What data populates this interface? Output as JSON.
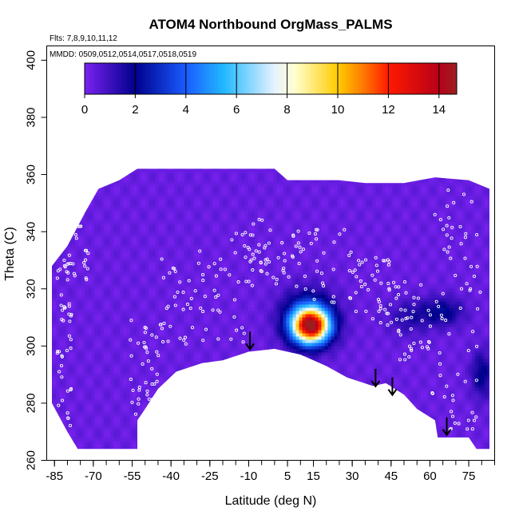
{
  "chart_data": {
    "type": "heatmap",
    "title": "ATOM4 Northbound OrgMass_PALMS",
    "flights_label": "Flts: 7,8,9,10,11,12",
    "dates_label": "MMDD: 0509,0512,0514,0517,0518,0519",
    "xlabel": "Latitude (deg N)",
    "ylabel": "Theta (C)",
    "xlim": [
      -88,
      85
    ],
    "ylim": [
      260,
      405
    ],
    "x_ticks": [
      "-85",
      "-70",
      "-55",
      "-40",
      "-25",
      "-10",
      "5",
      "15",
      "30",
      "45",
      "60",
      "75"
    ],
    "x_tick_values": [
      -85,
      -70,
      -55,
      -40,
      -25,
      -10,
      5,
      15,
      30,
      45,
      60,
      75
    ],
    "y_ticks": [
      "260",
      "280",
      "300",
      "320",
      "340",
      "360",
      "380",
      "400"
    ],
    "y_tick_values": [
      260,
      280,
      300,
      320,
      340,
      360,
      380,
      400
    ],
    "colorbar": {
      "range": [
        0,
        14.7
      ],
      "tick_labels": [
        "0",
        "2",
        "4",
        "6",
        "8",
        "10",
        "12",
        "14"
      ],
      "tick_values": [
        0,
        2,
        4,
        6,
        8,
        10,
        12,
        14
      ],
      "colors": [
        "#7a22f0",
        "#00008c",
        "#1a5cff",
        "#22b8ff",
        "#e6f2ff",
        "#ffffd0",
        "#ffcc00",
        "#ff7a00",
        "#ff1a00",
        "#b80018",
        "#9a2020"
      ],
      "color_stops": [
        0,
        2,
        4,
        5.5,
        7.5,
        8.3,
        10,
        11,
        12,
        14,
        14.7
      ]
    },
    "background_value": 0.3,
    "field_top": [
      [
        -86,
        328
      ],
      [
        -80,
        335
      ],
      [
        -73,
        347
      ],
      [
        -68,
        355
      ],
      [
        -60,
        358
      ],
      [
        -53,
        362
      ],
      [
        -40,
        362
      ],
      [
        -10,
        362
      ],
      [
        0,
        362
      ],
      [
        5,
        358
      ],
      [
        15,
        358
      ],
      [
        25,
        358
      ],
      [
        35,
        357
      ],
      [
        50,
        357
      ],
      [
        62,
        359
      ],
      [
        75,
        358
      ],
      [
        83,
        355
      ]
    ],
    "field_bottom": [
      [
        83,
        264
      ],
      [
        78,
        264
      ],
      [
        75,
        268
      ],
      [
        72,
        268
      ],
      [
        67,
        268
      ],
      [
        63,
        268
      ],
      [
        62,
        274
      ],
      [
        55,
        278
      ],
      [
        50,
        283
      ],
      [
        43,
        287
      ],
      [
        38,
        286
      ],
      [
        28,
        289
      ],
      [
        20,
        293
      ],
      [
        10,
        297
      ],
      [
        0,
        299
      ],
      [
        -10,
        298
      ],
      [
        -20,
        295
      ],
      [
        -28,
        294
      ],
      [
        -38,
        291
      ],
      [
        -45,
        285
      ],
      [
        -50,
        278
      ],
      [
        -53,
        274
      ],
      [
        -53,
        264
      ],
      [
        -76,
        264
      ],
      [
        -80,
        270
      ],
      [
        -86,
        280
      ]
    ],
    "hotspots": [
      {
        "lat": 14,
        "theta": 307,
        "peak": 12.5,
        "sx": 7,
        "sy": 6
      },
      {
        "lat": 13,
        "theta": 310,
        "peak": 3,
        "sx": 10,
        "sy": 9
      },
      {
        "lat": 65,
        "theta": 312,
        "peak": 1.8,
        "sx": 8,
        "sy": 5
      },
      {
        "lat": 80,
        "theta": 290,
        "peak": 1.8,
        "sx": 4,
        "sy": 8
      },
      {
        "lat": 52,
        "theta": 310,
        "peak": 1.1,
        "sx": 8,
        "sy": 6
      }
    ],
    "arrows": [
      {
        "lat": -9.5,
        "theta": 305
      },
      {
        "lat": 39,
        "theta": 292
      },
      {
        "lat": 45.5,
        "theta": 289
      },
      {
        "lat": 66.5,
        "theta": 275
      }
    ],
    "observations": [
      {
        "lat_range": [
          -84,
          -72
        ],
        "theta_range": [
          322,
          356
        ],
        "count": 40
      },
      {
        "lat_range": [
          -84,
          -78
        ],
        "theta_range": [
          272,
          330
        ],
        "count": 40
      },
      {
        "lat_range": [
          -56,
          -44
        ],
        "theta_range": [
          276,
          310
        ],
        "count": 40
      },
      {
        "lat_range": [
          -44,
          -30
        ],
        "theta_range": [
          300,
          332
        ],
        "count": 30
      },
      {
        "lat_range": [
          -30,
          -10
        ],
        "theta_range": [
          300,
          340
        ],
        "count": 40
      },
      {
        "lat_range": [
          -10,
          10
        ],
        "theta_range": [
          320,
          345
        ],
        "count": 50
      },
      {
        "lat_range": [
          10,
          30
        ],
        "theta_range": [
          310,
          342
        ],
        "count": 30
      },
      {
        "lat_range": [
          30,
          45
        ],
        "theta_range": [
          305,
          332
        ],
        "count": 40
      },
      {
        "lat_range": [
          45,
          60
        ],
        "theta_range": [
          295,
          325
        ],
        "count": 40
      },
      {
        "lat_range": [
          60,
          80
        ],
        "theta_range": [
          270,
          355
        ],
        "count": 70
      }
    ]
  }
}
